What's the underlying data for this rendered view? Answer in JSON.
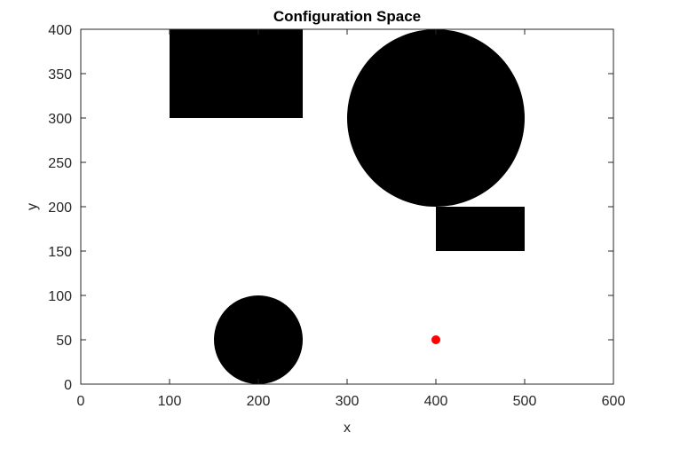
{
  "chart_data": {
    "type": "scatter",
    "title": "Configuration Space",
    "xlabel": "x",
    "ylabel": "y",
    "xlim": [
      0,
      600
    ],
    "ylim": [
      0,
      400
    ],
    "x_ticks": [
      0,
      100,
      200,
      300,
      400,
      500,
      600
    ],
    "y_ticks": [
      0,
      50,
      100,
      150,
      200,
      250,
      300,
      350,
      400
    ],
    "grid": false,
    "legend": "none",
    "obstacles": [
      {
        "shape": "rectangle",
        "x": [
          100,
          250
        ],
        "y": [
          300,
          400
        ],
        "color": "#000000"
      },
      {
        "shape": "circle",
        "center": [
          400,
          300
        ],
        "radius": 100,
        "color": "#000000"
      },
      {
        "shape": "rectangle",
        "x": [
          400,
          500
        ],
        "y": [
          150,
          200
        ],
        "color": "#000000"
      },
      {
        "shape": "circle",
        "center": [
          200,
          50
        ],
        "radius": 50,
        "color": "#000000"
      }
    ],
    "points": [
      {
        "x": 400,
        "y": 50,
        "color": "#ff0000"
      }
    ]
  }
}
